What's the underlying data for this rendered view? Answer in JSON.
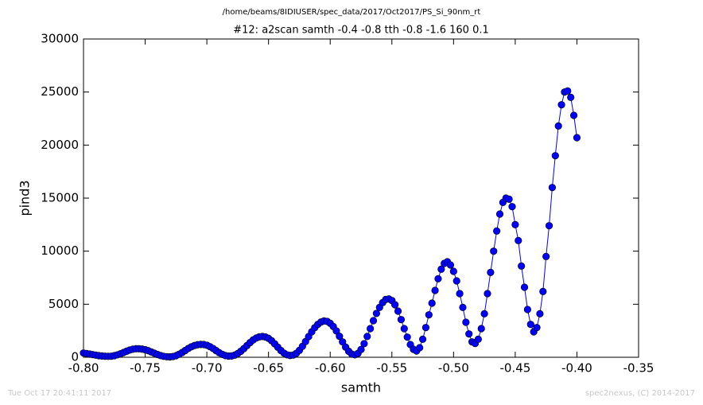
{
  "chart_data": {
    "type": "line",
    "suptitle": "/home/beams/8IDIUSER/spec_data/2017/Oct2017/PS_Si_90nm_rt",
    "title": "#12: a2scan  samth -0.4 -0.8  tth -0.8 -1.6  160 0.1",
    "x_label": "samth",
    "y_label": "pind3",
    "footer_left": "Tue Oct 17 20:41:11 2017",
    "footer_right": "spec2nexus, (C) 2014-2017",
    "xlim": [
      -0.8,
      -0.35
    ],
    "ylim": [
      0,
      30000
    ],
    "xticks": [
      {
        "value": -0.8,
        "label": "-0.80"
      },
      {
        "value": -0.75,
        "label": "-0.75"
      },
      {
        "value": -0.7,
        "label": "-0.70"
      },
      {
        "value": -0.65,
        "label": "-0.65"
      },
      {
        "value": -0.6,
        "label": "-0.60"
      },
      {
        "value": -0.55,
        "label": "-0.55"
      },
      {
        "value": -0.5,
        "label": "-0.50"
      },
      {
        "value": -0.45,
        "label": "-0.45"
      },
      {
        "value": -0.4,
        "label": "-0.40"
      },
      {
        "value": -0.35,
        "label": "-0.35"
      }
    ],
    "yticks": [
      0,
      5000,
      10000,
      15000,
      20000,
      25000,
      30000
    ],
    "x": [
      -0.8,
      -0.7975,
      -0.795,
      -0.7925,
      -0.79,
      -0.7875,
      -0.785,
      -0.7825,
      -0.78,
      -0.7775,
      -0.775,
      -0.7725,
      -0.77,
      -0.7675,
      -0.765,
      -0.7625,
      -0.76,
      -0.7575,
      -0.755,
      -0.7525,
      -0.75,
      -0.7475,
      -0.745,
      -0.7425,
      -0.74,
      -0.7375,
      -0.735,
      -0.7325,
      -0.73,
      -0.7275,
      -0.725,
      -0.7225,
      -0.72,
      -0.7175,
      -0.715,
      -0.7125,
      -0.71,
      -0.7075,
      -0.705,
      -0.7025,
      -0.7,
      -0.6975,
      -0.695,
      -0.6925,
      -0.69,
      -0.6875,
      -0.685,
      -0.6825,
      -0.68,
      -0.6775,
      -0.675,
      -0.6725,
      -0.67,
      -0.6675,
      -0.665,
      -0.6625,
      -0.66,
      -0.6575,
      -0.655,
      -0.6525,
      -0.65,
      -0.6475,
      -0.645,
      -0.6425,
      -0.64,
      -0.6375,
      -0.635,
      -0.6325,
      -0.63,
      -0.6275,
      -0.625,
      -0.6225,
      -0.62,
      -0.6175,
      -0.615,
      -0.6125,
      -0.61,
      -0.6075,
      -0.605,
      -0.6025,
      -0.6,
      -0.5975,
      -0.595,
      -0.5925,
      -0.59,
      -0.5875,
      -0.585,
      -0.5825,
      -0.58,
      -0.5775,
      -0.575,
      -0.5725,
      -0.57,
      -0.5675,
      -0.565,
      -0.5625,
      -0.56,
      -0.5575,
      -0.555,
      -0.5525,
      -0.55,
      -0.5475,
      -0.545,
      -0.5425,
      -0.54,
      -0.5375,
      -0.535,
      -0.5325,
      -0.53,
      -0.5275,
      -0.525,
      -0.5225,
      -0.52,
      -0.5175,
      -0.515,
      -0.5125,
      -0.51,
      -0.5075,
      -0.505,
      -0.5025,
      -0.5,
      -0.4975,
      -0.495,
      -0.4925,
      -0.49,
      -0.4875,
      -0.485,
      -0.4825,
      -0.48,
      -0.4775,
      -0.475,
      -0.4725,
      -0.47,
      -0.4675,
      -0.465,
      -0.4625,
      -0.46,
      -0.4575,
      -0.455,
      -0.4525,
      -0.45,
      -0.4475,
      -0.445,
      -0.4425,
      -0.44,
      -0.4375,
      -0.435,
      -0.4325,
      -0.43,
      -0.4275,
      -0.425,
      -0.4225,
      -0.42,
      -0.4175,
      -0.415,
      -0.4125,
      -0.41,
      -0.4075,
      -0.405,
      -0.4025,
      -0.4
    ],
    "series": [
      {
        "name": "pind3",
        "color": "#0000ff",
        "values": [
          400,
          350,
          300,
          250,
          200,
          150,
          120,
          100,
          90,
          100,
          150,
          230,
          330,
          450,
          570,
          680,
          760,
          800,
          800,
          770,
          710,
          620,
          500,
          380,
          260,
          160,
          90,
          50,
          40,
          70,
          150,
          280,
          450,
          640,
          830,
          990,
          1110,
          1180,
          1210,
          1200,
          1130,
          1000,
          830,
          630,
          430,
          270,
          160,
          110,
          120,
          200,
          350,
          560,
          820,
          1100,
          1380,
          1630,
          1810,
          1920,
          1960,
          1910,
          1780,
          1560,
          1270,
          950,
          640,
          390,
          230,
          170,
          210,
          370,
          650,
          1030,
          1480,
          1950,
          2400,
          2790,
          3100,
          3320,
          3420,
          3380,
          3200,
          2900,
          2480,
          1980,
          1450,
          960,
          560,
          300,
          230,
          370,
          730,
          1280,
          1960,
          2700,
          3450,
          4130,
          4700,
          5150,
          5450,
          5500,
          5350,
          4950,
          4350,
          3550,
          2700,
          1900,
          1200,
          750,
          600,
          900,
          1700,
          2800,
          4000,
          5100,
          6300,
          7400,
          8300,
          8850,
          9000,
          8700,
          8100,
          7200,
          6000,
          4700,
          3300,
          2200,
          1450,
          1300,
          1700,
          2700,
          4100,
          6000,
          8000,
          10000,
          11900,
          13500,
          14600,
          15000,
          14900,
          14200,
          12500,
          11000,
          8600,
          6600,
          4500,
          3100,
          2400,
          2800,
          4100,
          6200,
          9500,
          12400,
          16000,
          19000,
          21800,
          23800,
          25000,
          25100,
          24500,
          22800,
          20700
        ]
      }
    ]
  }
}
